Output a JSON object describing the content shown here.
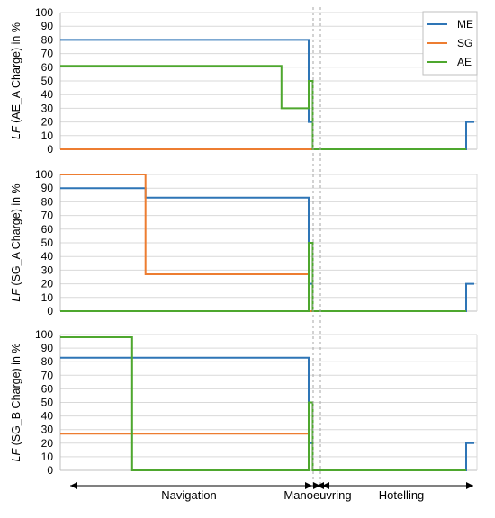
{
  "colors": {
    "ME": "#2E75B6",
    "SG": "#ED7D31",
    "AE": "#4EA72E",
    "grid": "#D9D9D9",
    "axis": "#BFBFBF",
    "divider": "#A6A6A6"
  },
  "legend": {
    "placement": "top-right of top panel",
    "entries": [
      "ME",
      "SG",
      "AE"
    ]
  },
  "phases": [
    "Navigation",
    "Manoeuvring",
    "Hotelling"
  ],
  "chart_data": [
    {
      "type": "line",
      "ylabel_prefix": "LF",
      "ylabel_rest": " (AE_A Charge) in %",
      "ylim": [
        0,
        100
      ],
      "yticks": [
        0,
        10,
        20,
        30,
        40,
        50,
        60,
        70,
        80,
        90,
        100
      ],
      "grid": true,
      "series": [
        {
          "name": "ME",
          "points": [
            [
              0,
              80
            ],
            [
              0.612,
              80
            ],
            [
              0.612,
              20
            ],
            [
              0.622,
              20
            ],
            [
              0.622,
              0
            ],
            [
              1.0,
              0
            ],
            [
              1.0,
              20
            ],
            [
              1.02,
              20
            ]
          ]
        },
        {
          "name": "SG",
          "points": [
            [
              0,
              0
            ],
            [
              0.622,
              0
            ]
          ]
        },
        {
          "name": "AE",
          "points": [
            [
              0,
              61
            ],
            [
              0.545,
              61
            ],
            [
              0.545,
              30
            ],
            [
              0.612,
              30
            ],
            [
              0.612,
              50
            ],
            [
              0.622,
              50
            ],
            [
              0.622,
              0
            ],
            [
              1.0,
              0
            ]
          ]
        }
      ]
    },
    {
      "type": "line",
      "ylabel_prefix": "LF",
      "ylabel_rest": " (SG_A Charge) in %",
      "ylim": [
        0,
        100
      ],
      "yticks": [
        0,
        10,
        20,
        30,
        40,
        50,
        60,
        70,
        80,
        90,
        100
      ],
      "grid": true,
      "series": [
        {
          "name": "ME",
          "points": [
            [
              0,
              90
            ],
            [
              0.21,
              90
            ],
            [
              0.21,
              83
            ],
            [
              0.612,
              83
            ],
            [
              0.612,
              20
            ],
            [
              0.622,
              20
            ],
            [
              0.622,
              0
            ],
            [
              1.0,
              0
            ],
            [
              1.0,
              20
            ],
            [
              1.02,
              20
            ]
          ]
        },
        {
          "name": "SG",
          "points": [
            [
              0,
              100
            ],
            [
              0.21,
              100
            ],
            [
              0.21,
              27
            ],
            [
              0.612,
              27
            ],
            [
              0.612,
              0
            ],
            [
              0.622,
              0
            ]
          ]
        },
        {
          "name": "AE",
          "points": [
            [
              0,
              0
            ],
            [
              0.612,
              0
            ],
            [
              0.612,
              50
            ],
            [
              0.622,
              50
            ],
            [
              0.622,
              0
            ],
            [
              1.0,
              0
            ]
          ]
        }
      ]
    },
    {
      "type": "line",
      "ylabel_prefix": "LF",
      "ylabel_rest": " (SG_B Charge) in %",
      "ylim": [
        0,
        100
      ],
      "yticks": [
        0,
        10,
        20,
        30,
        40,
        50,
        60,
        70,
        80,
        90,
        100
      ],
      "grid": true,
      "series": [
        {
          "name": "ME",
          "points": [
            [
              0,
              83
            ],
            [
              0.612,
              83
            ],
            [
              0.612,
              20
            ],
            [
              0.622,
              20
            ],
            [
              0.622,
              0
            ],
            [
              1.0,
              0
            ],
            [
              1.0,
              20
            ],
            [
              1.02,
              20
            ]
          ]
        },
        {
          "name": "SG",
          "points": [
            [
              0,
              27
            ],
            [
              0.612,
              27
            ]
          ]
        },
        {
          "name": "AE",
          "points": [
            [
              0,
              98
            ],
            [
              0.177,
              98
            ],
            [
              0.177,
              0
            ],
            [
              0.612,
              0
            ],
            [
              0.612,
              50
            ],
            [
              0.622,
              50
            ],
            [
              0.622,
              0
            ],
            [
              1.0,
              0
            ]
          ]
        }
      ]
    }
  ]
}
